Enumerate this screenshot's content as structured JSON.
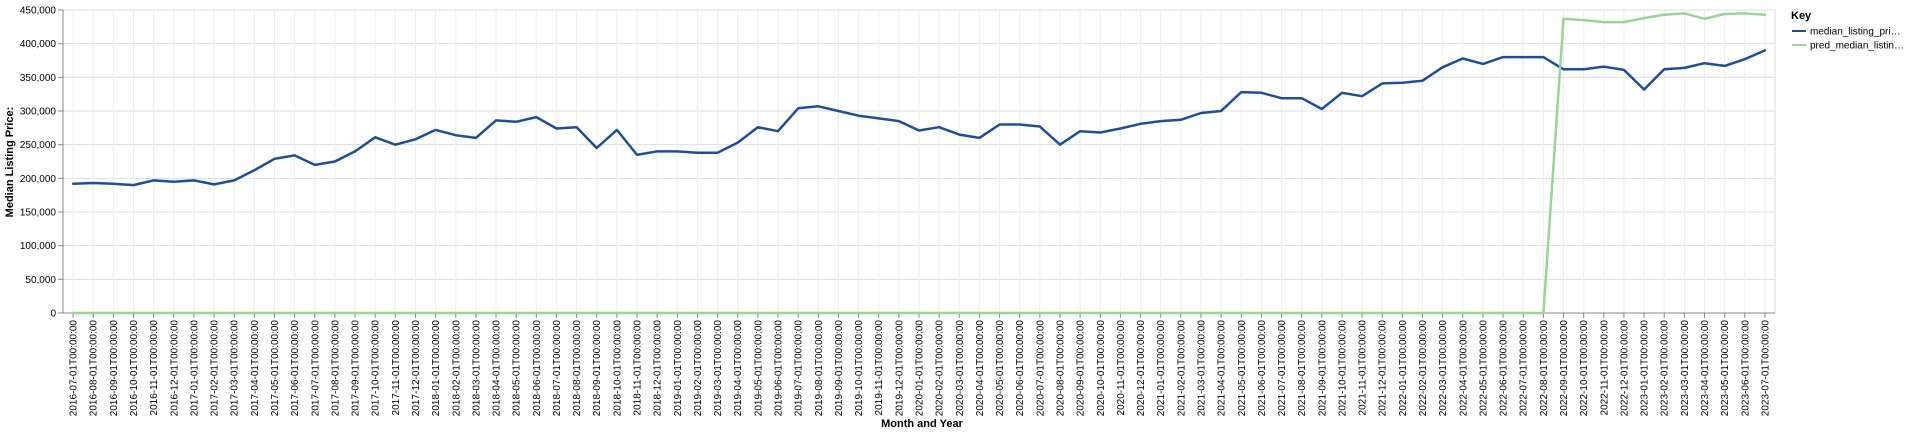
{
  "chart_data": {
    "type": "line",
    "xlabel": "Month and Year",
    "ylabel": "Median Listing Price:",
    "ylim": [
      0,
      450000
    ],
    "yticks": [
      0,
      50000,
      100000,
      150000,
      200000,
      250000,
      300000,
      350000,
      400000,
      450000
    ],
    "grid": true,
    "legend": {
      "title": "Key",
      "position": "top-right",
      "entries": [
        "median_listing_pri…",
        "pred_median_listin…"
      ]
    },
    "x": [
      "2016-07-01T00:00:00",
      "2016-08-01T00:00:00",
      "2016-09-01T00:00:00",
      "2016-10-01T00:00:00",
      "2016-11-01T00:00:00",
      "2016-12-01T00:00:00",
      "2017-01-01T00:00:00",
      "2017-02-01T00:00:00",
      "2017-03-01T00:00:00",
      "2017-04-01T00:00:00",
      "2017-05-01T00:00:00",
      "2017-06-01T00:00:00",
      "2017-07-01T00:00:00",
      "2017-08-01T00:00:00",
      "2017-09-01T00:00:00",
      "2017-10-01T00:00:00",
      "2017-11-01T00:00:00",
      "2017-12-01T00:00:00",
      "2018-01-01T00:00:00",
      "2018-02-01T00:00:00",
      "2018-03-01T00:00:00",
      "2018-04-01T00:00:00",
      "2018-05-01T00:00:00",
      "2018-06-01T00:00:00",
      "2018-07-01T00:00:00",
      "2018-08-01T00:00:00",
      "2018-09-01T00:00:00",
      "2018-10-01T00:00:00",
      "2018-11-01T00:00:00",
      "2018-12-01T00:00:00",
      "2019-01-01T00:00:00",
      "2019-02-01T00:00:00",
      "2019-03-01T00:00:00",
      "2019-04-01T00:00:00",
      "2019-05-01T00:00:00",
      "2019-06-01T00:00:00",
      "2019-07-01T00:00:00",
      "2019-08-01T00:00:00",
      "2019-09-01T00:00:00",
      "2019-10-01T00:00:00",
      "2019-11-01T00:00:00",
      "2019-12-01T00:00:00",
      "2020-01-01T00:00:00",
      "2020-02-01T00:00:00",
      "2020-03-01T00:00:00",
      "2020-04-01T00:00:00",
      "2020-05-01T00:00:00",
      "2020-06-01T00:00:00",
      "2020-07-01T00:00:00",
      "2020-08-01T00:00:00",
      "2020-09-01T00:00:00",
      "2020-10-01T00:00:00",
      "2020-11-01T00:00:00",
      "2020-12-01T00:00:00",
      "2021-01-01T00:00:00",
      "2021-02-01T00:00:00",
      "2021-03-01T00:00:00",
      "2021-04-01T00:00:00",
      "2021-05-01T00:00:00",
      "2021-06-01T00:00:00",
      "2021-07-01T00:00:00",
      "2021-08-01T00:00:00",
      "2021-09-01T00:00:00",
      "2021-10-01T00:00:00",
      "2021-11-01T00:00:00",
      "2021-12-01T00:00:00",
      "2022-01-01T00:00:00",
      "2022-02-01T00:00:00",
      "2022-03-01T00:00:00",
      "2022-04-01T00:00:00",
      "2022-05-01T00:00:00",
      "2022-06-01T00:00:00",
      "2022-07-01T00:00:00",
      "2022-08-01T00:00:00",
      "2022-09-01T00:00:00",
      "2022-10-01T00:00:00",
      "2022-11-01T00:00:00",
      "2022-12-01T00:00:00",
      "2023-01-01T00:00:00",
      "2023-02-01T00:00:00",
      "2023-03-01T00:00:00",
      "2023-04-01T00:00:00",
      "2023-05-01T00:00:00",
      "2023-06-01T00:00:00",
      "2023-07-01T00:00:00"
    ],
    "series": [
      {
        "name": "median_listing_pri…",
        "color": "#1f4e99",
        "values": [
          192000,
          193000,
          192000,
          190000,
          197000,
          195000,
          197000,
          191000,
          197000,
          212000,
          229000,
          234000,
          220000,
          225000,
          240000,
          261000,
          250000,
          258000,
          272000,
          264000,
          260000,
          286000,
          284000,
          291000,
          274000,
          276000,
          245000,
          272000,
          235000,
          240000,
          240000,
          238000,
          238000,
          253000,
          276000,
          270000,
          304000,
          307000,
          300000,
          293000,
          289000,
          285000,
          271000,
          276000,
          265000,
          260000,
          280000,
          280000,
          277000,
          250000,
          270000,
          268000,
          274000,
          281000,
          285000,
          287000,
          297000,
          300000,
          328000,
          327000,
          319000,
          319000,
          303000,
          327000,
          322000,
          341000,
          342000,
          345000,
          365000,
          378000,
          370000,
          380000,
          380000,
          380000,
          362000,
          362000,
          366000,
          361000,
          332000,
          362000,
          364000,
          371000,
          367000,
          377000,
          390000
        ]
      },
      {
        "name": "pred_median_listin…",
        "color": "#98d594",
        "values": [
          0,
          0,
          0,
          0,
          0,
          0,
          0,
          0,
          0,
          0,
          0,
          0,
          0,
          0,
          0,
          0,
          0,
          0,
          0,
          0,
          0,
          0,
          0,
          0,
          0,
          0,
          0,
          0,
          0,
          0,
          0,
          0,
          0,
          0,
          0,
          0,
          0,
          0,
          0,
          0,
          0,
          0,
          0,
          0,
          0,
          0,
          0,
          0,
          0,
          0,
          0,
          0,
          0,
          0,
          0,
          0,
          0,
          0,
          0,
          0,
          0,
          0,
          0,
          0,
          0,
          0,
          0,
          0,
          0,
          0,
          0,
          0,
          0,
          0,
          437000,
          435000,
          432000,
          432000,
          438000,
          443000,
          445000,
          437000,
          444000,
          445000,
          443000
        ]
      }
    ]
  }
}
